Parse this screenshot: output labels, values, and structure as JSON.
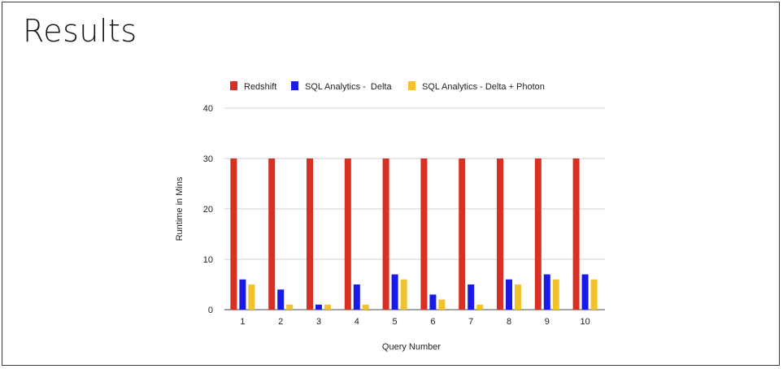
{
  "slide": {
    "title": "Results"
  },
  "chart_data": {
    "type": "bar",
    "title": "",
    "xlabel": "Query Number",
    "ylabel": "Runtime in Mins",
    "categories": [
      "1",
      "2",
      "3",
      "4",
      "5",
      "6",
      "7",
      "8",
      "9",
      "10"
    ],
    "ylim": [
      0,
      40
    ],
    "yticks": [
      0,
      10,
      20,
      30,
      40
    ],
    "grid": true,
    "legend_position": "top",
    "series": [
      {
        "name": "Redshift",
        "color": "#d93025",
        "values": [
          30,
          30,
          30,
          30,
          30,
          30,
          30,
          30,
          30,
          30
        ]
      },
      {
        "name": "SQL Analytics -  Delta",
        "color": "#1a1ae6",
        "values": [
          6,
          4,
          1,
          5,
          7,
          3,
          5,
          6,
          7,
          7
        ]
      },
      {
        "name": "SQL Analytics - Delta + Photon",
        "color": "#f2c12e",
        "values": [
          5,
          1,
          1,
          1,
          6,
          2,
          1,
          5,
          6,
          6
        ]
      }
    ]
  }
}
